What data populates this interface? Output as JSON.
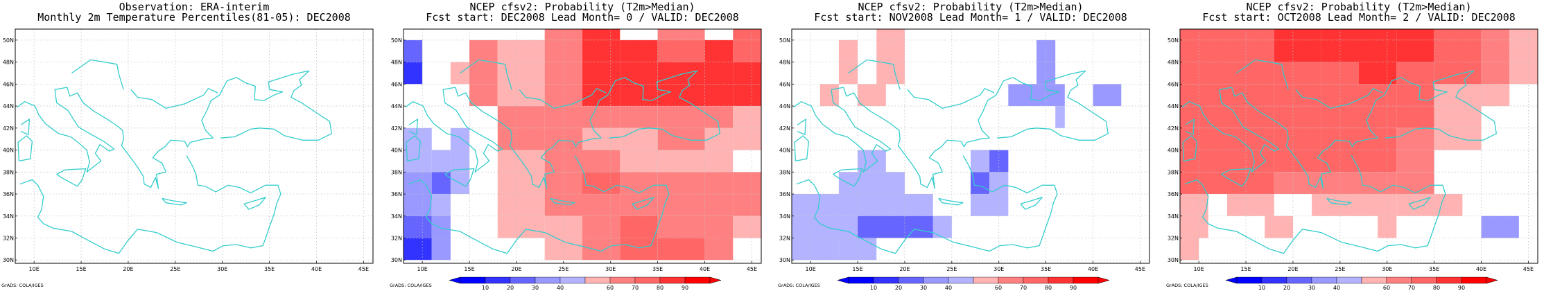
{
  "colors": {
    "coast": "#33cccc",
    "grid": "#bfbfbf",
    "blue": [
      "#0000ff",
      "#3333ff",
      "#6666ff",
      "#9999ff",
      "#b3b3ff"
    ],
    "red": [
      "#ffb3b3",
      "#ff8080",
      "#ff6666",
      "#ff3333",
      "#ff0000"
    ]
  },
  "axes": {
    "lon_ticks": [
      "10E",
      "15E",
      "20E",
      "25E",
      "30E",
      "35E",
      "40E",
      "45E"
    ],
    "lat_ticks": [
      "30N",
      "32N",
      "34N",
      "36N",
      "38N",
      "40N",
      "42N",
      "44N",
      "46N",
      "48N",
      "50N"
    ],
    "lon_range": [
      8,
      46
    ],
    "lat_range": [
      29.7,
      51
    ]
  },
  "colorbar": {
    "labels": [
      "10",
      "20",
      "30",
      "40",
      "60",
      "70",
      "80",
      "90"
    ]
  },
  "credit": "GrADS: COLA/IGES",
  "panels": [
    {
      "title1": "Observation: ERA-interim",
      "title2": "Monthly 2m Temperature Percentiles(81-05): DEC2008",
      "has_colorbar": false,
      "grid_cells": []
    },
    {
      "title1": "NCEP cfsv2: Probability (T2m>Median)",
      "title2": "Fcst start: DEC2008  Lead Month= 0 / VALID: DEC2008",
      "has_colorbar": true,
      "grid_cells": [
        [
          8,
          10,
          48,
          50,
          "b2"
        ],
        [
          8,
          10,
          46,
          48,
          "b1"
        ],
        [
          8,
          11,
          40,
          42,
          "b4"
        ],
        [
          8,
          11,
          38,
          40,
          "b4"
        ],
        [
          8,
          11,
          36,
          38,
          "b3"
        ],
        [
          8,
          11,
          34,
          36,
          "b3"
        ],
        [
          8,
          11,
          32,
          34,
          "b2"
        ],
        [
          8,
          11,
          30,
          32,
          "b1"
        ],
        [
          11,
          13,
          38,
          40,
          "b4"
        ],
        [
          11,
          13,
          36,
          38,
          "b2"
        ],
        [
          11,
          13,
          34,
          36,
          "b4"
        ],
        [
          11,
          13,
          32,
          34,
          "b3"
        ],
        [
          11,
          13,
          30,
          32,
          "b3"
        ],
        [
          13,
          15,
          40,
          42,
          "b4"
        ],
        [
          13,
          15,
          38,
          40,
          "b4"
        ],
        [
          13,
          15,
          36,
          38,
          "b4"
        ],
        [
          13,
          15,
          46,
          48,
          "r1"
        ],
        [
          15,
          18,
          48,
          50,
          "r2"
        ],
        [
          15,
          18,
          46,
          48,
          "r2"
        ],
        [
          15,
          18,
          44,
          46,
          "r2"
        ],
        [
          18,
          23,
          48,
          50,
          "r1"
        ],
        [
          18,
          23,
          46,
          48,
          "r1"
        ],
        [
          18,
          23,
          44,
          46,
          "r1"
        ],
        [
          18,
          23,
          42,
          44,
          "r2"
        ],
        [
          18,
          23,
          40,
          42,
          "r2"
        ],
        [
          18,
          23,
          38,
          40,
          "r1"
        ],
        [
          18,
          23,
          36,
          38,
          "r1"
        ],
        [
          18,
          23,
          34,
          36,
          "r1"
        ],
        [
          18,
          23,
          32,
          34,
          "r1"
        ],
        [
          23,
          27,
          50,
          51,
          "r2"
        ],
        [
          23,
          27,
          48,
          50,
          "r2"
        ],
        [
          23,
          27,
          46,
          48,
          "r2"
        ],
        [
          23,
          27,
          44,
          46,
          "r2"
        ],
        [
          23,
          27,
          42,
          44,
          "r2"
        ],
        [
          23,
          27,
          40,
          42,
          "r2"
        ],
        [
          23,
          27,
          38,
          40,
          "r2"
        ],
        [
          23,
          27,
          36,
          38,
          "r2"
        ],
        [
          23,
          27,
          34,
          36,
          "r2"
        ],
        [
          23,
          27,
          32,
          34,
          "r1"
        ],
        [
          23,
          27,
          30,
          32,
          "r1"
        ],
        [
          27,
          31,
          50,
          51,
          "r4"
        ],
        [
          27,
          31,
          48,
          50,
          "r4"
        ],
        [
          27,
          31,
          46,
          48,
          "r4"
        ],
        [
          27,
          31,
          44,
          46,
          "r4"
        ],
        [
          27,
          31,
          42,
          44,
          "r2"
        ],
        [
          27,
          31,
          40,
          42,
          "r1"
        ],
        [
          27,
          31,
          38,
          40,
          "r2"
        ],
        [
          27,
          31,
          36,
          38,
          "r3"
        ],
        [
          27,
          31,
          34,
          36,
          "r2"
        ],
        [
          27,
          31,
          32,
          34,
          "r2"
        ],
        [
          27,
          31,
          30,
          32,
          "r2"
        ],
        [
          31,
          35,
          48,
          50,
          "r4"
        ],
        [
          31,
          35,
          46,
          48,
          "r4"
        ],
        [
          31,
          35,
          44,
          46,
          "r4"
        ],
        [
          31,
          35,
          42,
          44,
          "r2"
        ],
        [
          31,
          35,
          40,
          42,
          "r1"
        ],
        [
          31,
          35,
          38,
          40,
          "r1"
        ],
        [
          31,
          35,
          36,
          38,
          "r2"
        ],
        [
          31,
          35,
          34,
          36,
          "r2"
        ],
        [
          31,
          35,
          32,
          34,
          "r3"
        ],
        [
          31,
          35,
          30,
          32,
          "r3"
        ],
        [
          35,
          40,
          50,
          51,
          "r2"
        ],
        [
          35,
          40,
          48,
          50,
          "r3"
        ],
        [
          35,
          40,
          46,
          48,
          "r4"
        ],
        [
          35,
          40,
          44,
          46,
          "r4"
        ],
        [
          35,
          40,
          42,
          44,
          "r2"
        ],
        [
          35,
          40,
          40,
          42,
          "r2"
        ],
        [
          35,
          40,
          38,
          40,
          "r1"
        ],
        [
          35,
          40,
          36,
          38,
          "r2"
        ],
        [
          35,
          40,
          34,
          36,
          "r2"
        ],
        [
          35,
          40,
          32,
          34,
          "r2"
        ],
        [
          35,
          40,
          30,
          32,
          "r3"
        ],
        [
          40,
          43,
          48,
          50,
          "r4"
        ],
        [
          40,
          43,
          46,
          48,
          "r4"
        ],
        [
          40,
          43,
          44,
          46,
          "r4"
        ],
        [
          40,
          43,
          42,
          44,
          "r2"
        ],
        [
          40,
          43,
          40,
          42,
          "r1"
        ],
        [
          40,
          43,
          38,
          40,
          "r1"
        ],
        [
          40,
          43,
          36,
          38,
          "r2"
        ],
        [
          40,
          43,
          34,
          36,
          "r2"
        ],
        [
          40,
          43,
          32,
          34,
          "r2"
        ],
        [
          40,
          43,
          30,
          32,
          "r2"
        ],
        [
          43,
          46,
          50,
          51,
          "r3"
        ],
        [
          43,
          46,
          48,
          50,
          "r3"
        ],
        [
          43,
          46,
          46,
          48,
          "r4"
        ],
        [
          43,
          46,
          44,
          46,
          "r4"
        ],
        [
          43,
          46,
          42,
          44,
          "r1"
        ],
        [
          43,
          46,
          40,
          42,
          "r1"
        ],
        [
          43,
          46,
          36,
          38,
          "r2"
        ],
        [
          43,
          46,
          34,
          36,
          "r2"
        ],
        [
          43,
          46,
          32,
          34,
          "r1"
        ]
      ]
    },
    {
      "title1": "NCEP cfsv2: Probability (T2m>Median)",
      "title2": "Fcst start: NOV2008  Lead Month= 1 / VALID: DEC2008",
      "has_colorbar": true,
      "grid_cells": [
        [
          17,
          20,
          50,
          51,
          "r1"
        ],
        [
          17,
          20,
          48,
          50,
          "r1"
        ],
        [
          13,
          15,
          48,
          50,
          "r1"
        ],
        [
          13,
          15,
          46,
          48,
          "r1"
        ],
        [
          11,
          13,
          44,
          46,
          "r1"
        ],
        [
          15,
          18,
          44,
          46,
          "r1"
        ],
        [
          17,
          20,
          46,
          48,
          "r1"
        ],
        [
          34,
          36,
          48,
          50,
          "b3"
        ],
        [
          34,
          36,
          46,
          48,
          "b3"
        ],
        [
          31,
          35,
          44,
          46,
          "b3"
        ],
        [
          35,
          37,
          44,
          46,
          "b3"
        ],
        [
          40,
          43,
          44,
          46,
          "b3"
        ],
        [
          36,
          37,
          42,
          44,
          "b4"
        ],
        [
          15,
          18,
          38,
          40,
          "b4"
        ],
        [
          13,
          20,
          36,
          38,
          "b4"
        ],
        [
          8,
          23,
          34,
          36,
          "b4"
        ],
        [
          8,
          23,
          32,
          34,
          "b4"
        ],
        [
          8,
          13,
          30,
          32,
          "b4"
        ],
        [
          23,
          25,
          32,
          34,
          "b4"
        ],
        [
          15,
          23,
          32,
          34,
          "b2"
        ],
        [
          13,
          17,
          30,
          32,
          "b4"
        ],
        [
          27,
          31,
          38,
          40,
          "b4"
        ],
        [
          27,
          29,
          36,
          38,
          "b2"
        ],
        [
          29,
          31,
          36,
          38,
          "b4"
        ],
        [
          27,
          31,
          34,
          36,
          "b4"
        ],
        [
          29,
          31,
          38,
          40,
          "b2"
        ]
      ]
    },
    {
      "title1": "NCEP cfsv2: Probability (T2m>Median)",
      "title2": "Fcst start: OCT2008  Lead Month= 2 / VALID: DEC2008",
      "has_colorbar": true,
      "grid_cells": [
        [
          8,
          18,
          50,
          51,
          "r3"
        ],
        [
          8,
          18,
          48,
          50,
          "r3"
        ],
        [
          8,
          18,
          46,
          48,
          "r3"
        ],
        [
          8,
          18,
          44,
          46,
          "r3"
        ],
        [
          8,
          18,
          42,
          44,
          "r3"
        ],
        [
          8,
          18,
          40,
          42,
          "r3"
        ],
        [
          8,
          18,
          38,
          40,
          "r3"
        ],
        [
          8,
          18,
          36,
          38,
          "r3"
        ],
        [
          18,
          23,
          50,
          51,
          "r4"
        ],
        [
          18,
          23,
          48,
          50,
          "r4"
        ],
        [
          18,
          23,
          46,
          48,
          "r3"
        ],
        [
          18,
          23,
          44,
          46,
          "r3"
        ],
        [
          18,
          23,
          42,
          44,
          "r3"
        ],
        [
          18,
          23,
          40,
          42,
          "r3"
        ],
        [
          18,
          23,
          38,
          40,
          "r3"
        ],
        [
          18,
          23,
          36,
          38,
          "r2"
        ],
        [
          23,
          27,
          50,
          51,
          "r4"
        ],
        [
          23,
          27,
          48,
          50,
          "r4"
        ],
        [
          23,
          27,
          46,
          48,
          "r3"
        ],
        [
          23,
          27,
          44,
          46,
          "r3"
        ],
        [
          23,
          27,
          42,
          44,
          "r3"
        ],
        [
          23,
          27,
          40,
          42,
          "r3"
        ],
        [
          23,
          27,
          38,
          40,
          "r3"
        ],
        [
          23,
          27,
          36,
          38,
          "r2"
        ],
        [
          27,
          31,
          50,
          51,
          "r4"
        ],
        [
          27,
          31,
          48,
          50,
          "r4"
        ],
        [
          27,
          31,
          46,
          48,
          "r4"
        ],
        [
          27,
          31,
          44,
          46,
          "r3"
        ],
        [
          27,
          31,
          42,
          44,
          "r3"
        ],
        [
          27,
          31,
          40,
          42,
          "r3"
        ],
        [
          27,
          31,
          38,
          40,
          "r3"
        ],
        [
          27,
          31,
          36,
          38,
          "r2"
        ],
        [
          31,
          35,
          50,
          51,
          "r4"
        ],
        [
          31,
          35,
          48,
          50,
          "r4"
        ],
        [
          31,
          35,
          46,
          48,
          "r3"
        ],
        [
          31,
          35,
          44,
          46,
          "r3"
        ],
        [
          31,
          35,
          42,
          44,
          "r3"
        ],
        [
          31,
          35,
          40,
          42,
          "r2"
        ],
        [
          31,
          35,
          38,
          40,
          "r2"
        ],
        [
          31,
          35,
          36,
          38,
          "r2"
        ],
        [
          35,
          40,
          50,
          51,
          "r3"
        ],
        [
          35,
          40,
          48,
          50,
          "r3"
        ],
        [
          35,
          40,
          46,
          48,
          "r3"
        ],
        [
          35,
          40,
          44,
          46,
          "r1"
        ],
        [
          35,
          40,
          42,
          44,
          "r1"
        ],
        [
          35,
          40,
          40,
          42,
          "r1"
        ],
        [
          40,
          43,
          50,
          51,
          "r2"
        ],
        [
          40,
          43,
          48,
          50,
          "r2"
        ],
        [
          40,
          43,
          46,
          48,
          "r2"
        ],
        [
          40,
          43,
          44,
          46,
          "r1"
        ],
        [
          43,
          46,
          50,
          51,
          "r1"
        ],
        [
          43,
          46,
          48,
          50,
          "r1"
        ],
        [
          43,
          46,
          46,
          48,
          "r1"
        ],
        [
          8,
          11,
          34,
          36,
          "r1"
        ],
        [
          13,
          15,
          34,
          36,
          "r1"
        ],
        [
          8,
          11,
          32,
          34,
          "r1"
        ],
        [
          8,
          10,
          30,
          32,
          "r1"
        ],
        [
          15,
          18,
          34,
          36,
          "r1"
        ],
        [
          22,
          25,
          34,
          36,
          "r1"
        ],
        [
          25,
          27,
          34,
          36,
          "r1"
        ],
        [
          27,
          31,
          34,
          36,
          "r1"
        ],
        [
          29,
          31,
          32,
          34,
          "r1"
        ],
        [
          31,
          35,
          34,
          36,
          "r1"
        ],
        [
          35,
          38,
          34,
          36,
          "r1"
        ],
        [
          17,
          20,
          32,
          34,
          "r1"
        ],
        [
          40,
          44,
          32,
          34,
          "b3"
        ]
      ]
    }
  ]
}
